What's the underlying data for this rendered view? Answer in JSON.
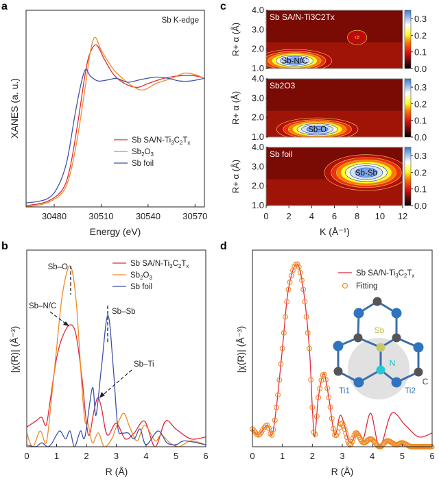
{
  "chart_data": [
    {
      "panel": "a",
      "type": "line",
      "annotation": "Sb K-edge",
      "xlabel": "Energy (eV)",
      "ylabel": "XANES (a. u.)",
      "xlim": [
        30462,
        30576
      ],
      "ylim": [
        0,
        1.53
      ],
      "xticks": [
        "30480",
        "30510",
        "30540",
        "30570"
      ],
      "legend_position": "center-right",
      "series": [
        {
          "name": "Sb SA/N-Ti3C2Tx",
          "color": "#e0283c",
          "x": [
            30462,
            30475,
            30485,
            30490,
            30495,
            30500,
            30503,
            30507,
            30512,
            30518,
            30525,
            30533,
            30540,
            30550,
            30560,
            30570,
            30576
          ],
          "y": [
            0.01,
            0.04,
            0.13,
            0.3,
            0.65,
            1.05,
            1.2,
            1.26,
            1.15,
            1.03,
            0.96,
            0.93,
            0.96,
            1.0,
            1.02,
            1.02,
            1.0
          ]
        },
        {
          "name": "Sb2O3",
          "color": "#f08a24",
          "x": [
            30462,
            30475,
            30485,
            30490,
            30495,
            30500,
            30503,
            30506,
            30510,
            30515,
            30520,
            30530,
            30537,
            30545,
            30555,
            30563,
            30570,
            30576
          ],
          "y": [
            0.0,
            0.03,
            0.11,
            0.25,
            0.55,
            0.95,
            1.2,
            1.32,
            1.22,
            1.12,
            1.04,
            0.94,
            0.91,
            0.96,
            1.0,
            1.04,
            1.03,
            1.0
          ]
        },
        {
          "name": "Sb foil",
          "color": "#3f52a8",
          "x": [
            30462,
            30475,
            30482,
            30488,
            30493,
            30497,
            30500,
            30503,
            30508,
            30515,
            30520,
            30527,
            30535,
            30545,
            30553,
            30560,
            30567,
            30576
          ],
          "y": [
            0.03,
            0.06,
            0.15,
            0.35,
            0.7,
            0.95,
            1.07,
            1.02,
            0.98,
            0.99,
            1.0,
            0.97,
            0.99,
            1.01,
            1.0,
            0.98,
            0.98,
            1.0
          ]
        }
      ]
    },
    {
      "panel": "b",
      "type": "line",
      "xlabel": "R (Å)",
      "ylabel": "|χ(R)| (Å⁻³)",
      "xlim": [
        0,
        6
      ],
      "ylim": [
        0,
        1
      ],
      "xticks": [
        "0",
        "1",
        "2",
        "3",
        "4",
        "5",
        "6"
      ],
      "legend_position": "top-right",
      "annotations": [
        "Sb–O",
        "Sb–N/C",
        "Sb–Sb",
        "Sb–Ti"
      ],
      "series": [
        {
          "name": "Sb SA/N-Ti3C2Tx",
          "color": "#e0283c",
          "x": [
            0,
            0.3,
            0.5,
            0.65,
            0.8,
            1.0,
            1.2,
            1.45,
            1.65,
            1.85,
            2.0,
            2.1,
            2.25,
            2.38,
            2.5,
            2.7,
            3.0,
            3.3,
            3.6,
            3.95,
            4.3,
            4.65,
            5.0,
            5.5,
            6.0
          ],
          "y": [
            0.1,
            0.13,
            0.15,
            0.11,
            0.25,
            0.45,
            0.56,
            0.62,
            0.57,
            0.35,
            0.12,
            0.06,
            0.18,
            0.25,
            0.2,
            0.06,
            0.12,
            0.04,
            0.07,
            0.13,
            0.0,
            0.13,
            0.09,
            0.04,
            0.05
          ]
        },
        {
          "name": "Sb2O3",
          "color": "#f08a24",
          "x": [
            0,
            0.2,
            0.45,
            0.65,
            0.8,
            1.0,
            1.2,
            1.45,
            1.65,
            1.85,
            1.95,
            2.05,
            2.2,
            2.4,
            2.6,
            2.85,
            3.0,
            3.25,
            3.45,
            3.7,
            3.95,
            4.3,
            4.5,
            4.8,
            5.1,
            5.5,
            6.0
          ],
          "y": [
            0.07,
            0.0,
            0.08,
            0.02,
            0.2,
            0.5,
            0.78,
            0.92,
            0.75,
            0.3,
            0.13,
            0.12,
            0.02,
            0.07,
            0.0,
            0.04,
            0.1,
            0.17,
            0.1,
            0.03,
            0.11,
            0.03,
            0.06,
            0.02,
            0.0,
            0.03,
            0.01
          ]
        },
        {
          "name": "Sb foil",
          "color": "#3f52a8",
          "x": [
            0,
            0.3,
            0.5,
            0.7,
            0.85,
            1.1,
            1.3,
            1.45,
            1.6,
            1.8,
            1.95,
            2.2,
            2.32,
            2.5,
            2.72,
            2.9,
            3.05,
            3.2,
            3.4,
            3.6,
            3.8,
            4.0,
            4.4,
            4.7,
            5.0,
            5.3,
            6.0
          ],
          "y": [
            0.01,
            0.0,
            0.02,
            0.0,
            0.02,
            0.08,
            0.04,
            0.08,
            0.0,
            0.08,
            0.05,
            0.3,
            0.16,
            0.4,
            0.67,
            0.4,
            0.1,
            0.07,
            0.07,
            0.04,
            0.09,
            0.01,
            0.08,
            0.02,
            0.01,
            0.03,
            0.01
          ]
        }
      ]
    },
    {
      "panel": "c",
      "type": "heatmap",
      "xlabel": "K (Å⁻¹)",
      "ylabel": "R+ α (Å)",
      "xlim": [
        0,
        12
      ],
      "ylim": [
        1.0,
        4.0
      ],
      "xticks": [
        "0",
        "2",
        "4",
        "6",
        "8",
        "10",
        "12"
      ],
      "yticks": [
        "1.0",
        "2.0",
        "3.0",
        "4.0"
      ],
      "colorbar_ticks": [
        "0.0",
        "0.1",
        "0.2",
        "0.3"
      ],
      "colorbar_range": [
        0,
        0.35
      ],
      "maps": [
        {
          "title": "Sb SA/N-Ti3C2Tx",
          "peaks": [
            {
              "label": "Sb-N/C",
              "k": 2.5,
              "R": 1.4,
              "sk": 3.2,
              "sR": 0.35,
              "value": 0.33
            },
            {
              "label": "Sb-Ti",
              "k": 8.0,
              "R": 2.6,
              "sk": 1.5,
              "sR": 0.4,
              "value": 0.1
            }
          ]
        },
        {
          "title": "Sb2O3",
          "peaks": [
            {
              "label": "Sb-O",
              "k": 4.5,
              "R": 1.4,
              "sk": 3.5,
              "sR": 0.35,
              "value": 0.33
            }
          ]
        },
        {
          "title": "Sb foil",
          "peaks": [
            {
              "label": "Sb-Sb",
              "k": 8.8,
              "R": 2.7,
              "sk": 3.6,
              "sR": 0.55,
              "value": 0.33
            }
          ]
        }
      ]
    },
    {
      "panel": "d",
      "type": "line",
      "xlabel": "R (Å)",
      "ylabel": "|χ(R)| (Å⁻³)",
      "xlim": [
        0,
        6
      ],
      "ylim": [
        0,
        1
      ],
      "xticks": [
        "0",
        "1",
        "2",
        "3",
        "4",
        "5",
        "6"
      ],
      "legend_position": "top-right",
      "series": [
        {
          "name": "Sb SA/N-Ti3C2Tx",
          "color": "#e0283c",
          "style": "line",
          "x": [
            0,
            0.2,
            0.5,
            0.65,
            0.8,
            1.0,
            1.2,
            1.48,
            1.7,
            1.9,
            2.0,
            2.08,
            2.2,
            2.38,
            2.55,
            2.75,
            2.95,
            3.25,
            3.5,
            3.7,
            3.95,
            4.25,
            4.65,
            5.1,
            5.55,
            6.0
          ],
          "y": [
            0.09,
            0.06,
            0.11,
            0.06,
            0.2,
            0.5,
            0.8,
            0.93,
            0.8,
            0.5,
            0.2,
            0.05,
            0.25,
            0.37,
            0.25,
            0.06,
            0.16,
            0.02,
            0.08,
            0.04,
            0.17,
            0.0,
            0.17,
            0.11,
            0.05,
            0.07
          ]
        },
        {
          "name": "Fitting",
          "color": "#f08a24",
          "style": "open-circles",
          "x": [
            0,
            0.2,
            0.5,
            0.65,
            0.8,
            1.0,
            1.2,
            1.48,
            1.7,
            1.9,
            2.0,
            2.08,
            2.2,
            2.38,
            2.55,
            2.75,
            3.0,
            3.25,
            3.45,
            3.7,
            3.95,
            4.25,
            4.5,
            4.8,
            5.0,
            5.3,
            6.0
          ],
          "y": [
            0.09,
            0.06,
            0.11,
            0.06,
            0.2,
            0.5,
            0.8,
            0.93,
            0.8,
            0.5,
            0.2,
            0.05,
            0.25,
            0.37,
            0.25,
            0.06,
            0.12,
            0.01,
            0.07,
            0.02,
            0.04,
            0.0,
            0.03,
            0.01,
            0.02,
            0.0,
            0.0
          ]
        }
      ],
      "inset_labels": {
        "sb": "Sb",
        "n": "N",
        "c": "C",
        "ti1": "Ti1",
        "ti2": "Ti2"
      }
    }
  ],
  "panel_labels": [
    "a",
    "b",
    "c",
    "d"
  ],
  "colors": {
    "red": "#e0283c",
    "orange": "#f08a24",
    "blue": "#3f52a8",
    "ti": "#2e74c0",
    "c_atom": "#555555",
    "sb_atom": "#c8c86a",
    "n_atom": "#28c8d8"
  }
}
